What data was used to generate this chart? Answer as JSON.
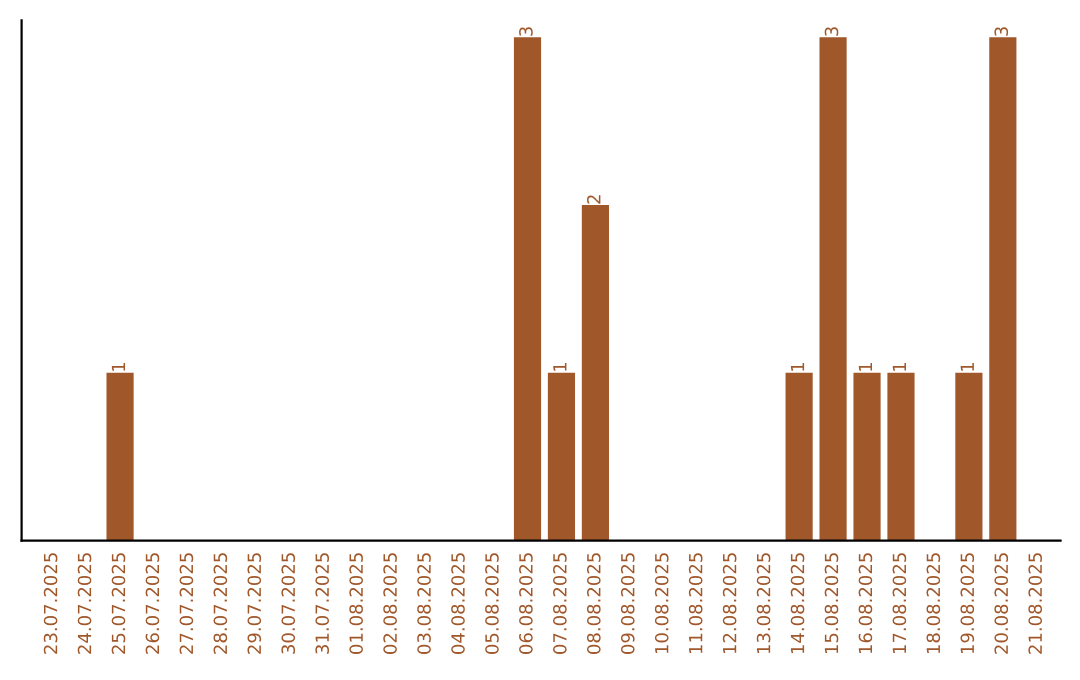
{
  "chart_data": {
    "type": "bar",
    "categories": [
      "23.07.2025",
      "24.07.2025",
      "25.07.2025",
      "26.07.2025",
      "27.07.2025",
      "28.07.2025",
      "29.07.2025",
      "30.07.2025",
      "31.07.2025",
      "01.08.2025",
      "02.08.2025",
      "03.08.2025",
      "04.08.2025",
      "05.08.2025",
      "06.08.2025",
      "07.08.2025",
      "08.08.2025",
      "09.08.2025",
      "10.08.2025",
      "11.08.2025",
      "12.08.2025",
      "13.08.2025",
      "14.08.2025",
      "15.08.2025",
      "16.08.2025",
      "17.08.2025",
      "18.08.2025",
      "19.08.2025",
      "20.08.2025",
      "21.08.2025"
    ],
    "values": [
      0,
      0,
      1,
      0,
      0,
      0,
      0,
      0,
      0,
      0,
      0,
      0,
      0,
      0,
      3,
      1,
      2,
      0,
      0,
      0,
      0,
      0,
      1,
      3,
      1,
      1,
      0,
      1,
      3,
      0
    ],
    "color": "#a0572a",
    "ylim": [
      0,
      3.1
    ],
    "tick_labels": "x",
    "grid": false,
    "legend": false,
    "value_labels": [
      null,
      null,
      "1",
      null,
      null,
      null,
      null,
      null,
      null,
      null,
      null,
      null,
      null,
      null,
      "3",
      "1",
      "2",
      null,
      null,
      null,
      null,
      null,
      "1",
      "3",
      "1",
      "1",
      null,
      "1",
      "3",
      null
    ]
  }
}
